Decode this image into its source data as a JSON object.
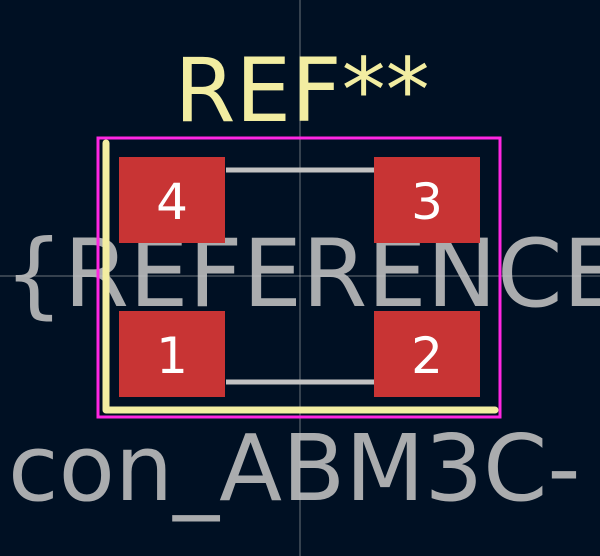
{
  "footprint": {
    "ref_designator": "REF**",
    "reference_field": "{REFERENCE",
    "value_field": "con_ABM3C-",
    "pads": [
      {
        "number": "4"
      },
      {
        "number": "3"
      },
      {
        "number": "1"
      },
      {
        "number": "2"
      }
    ]
  },
  "colors": {
    "background": "#001023",
    "silkscreen": "#f2eda1",
    "courtyard": "#ff26e2",
    "fabrication": "#c2c2c2",
    "pad": "#c83434",
    "pad_text": "#ffffff",
    "crosshair": "#c2c2c2"
  }
}
